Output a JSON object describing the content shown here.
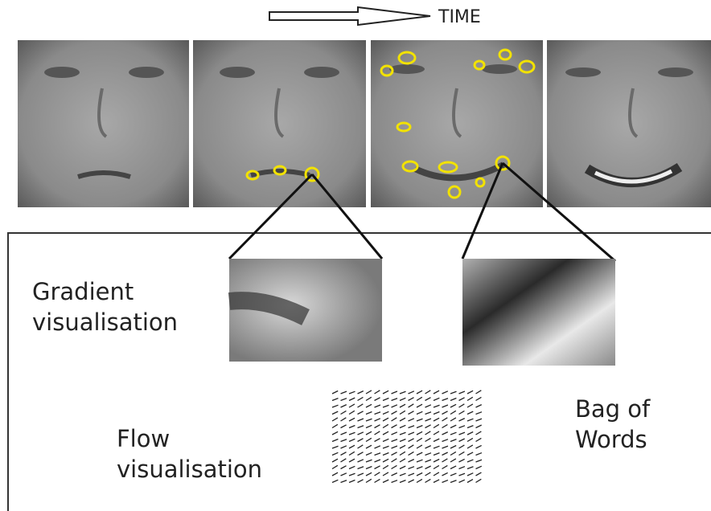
{
  "time_label": "TIME",
  "labels": {
    "gradient": "Gradient visualisation",
    "flow": "Flow visualisation",
    "bag": "Bag of Words"
  }
}
